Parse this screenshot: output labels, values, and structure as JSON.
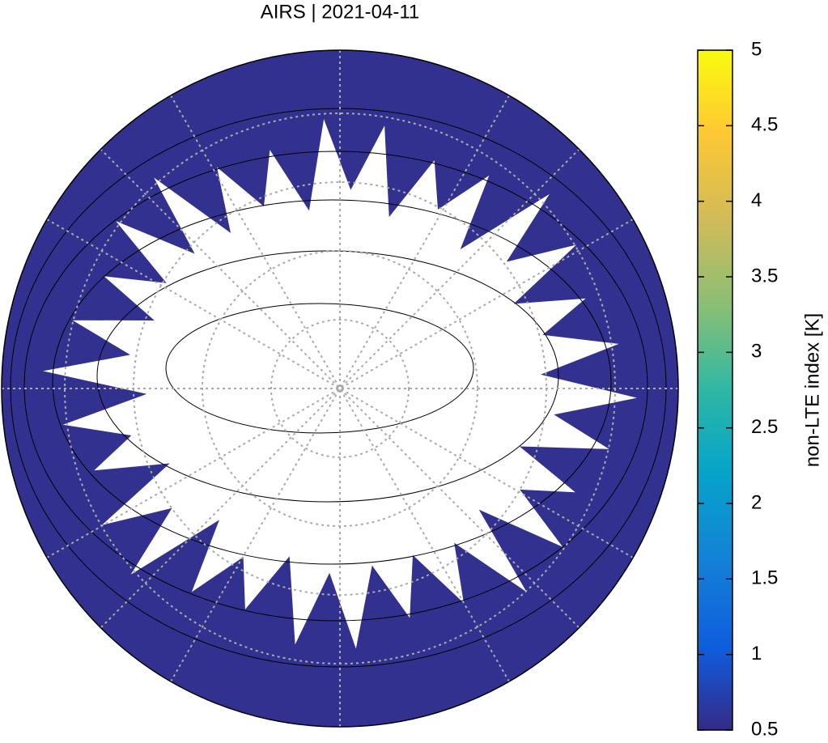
{
  "chart_data": {
    "type": "map",
    "title": "AIRS | 2021-04-11",
    "colorbar": {
      "label": "non-LTE index [K]",
      "lim": [
        0.5,
        5
      ],
      "ticks": [
        0.5,
        1,
        1.5,
        2,
        2.5,
        3,
        3.5,
        4,
        4.5,
        5
      ]
    }
  }
}
